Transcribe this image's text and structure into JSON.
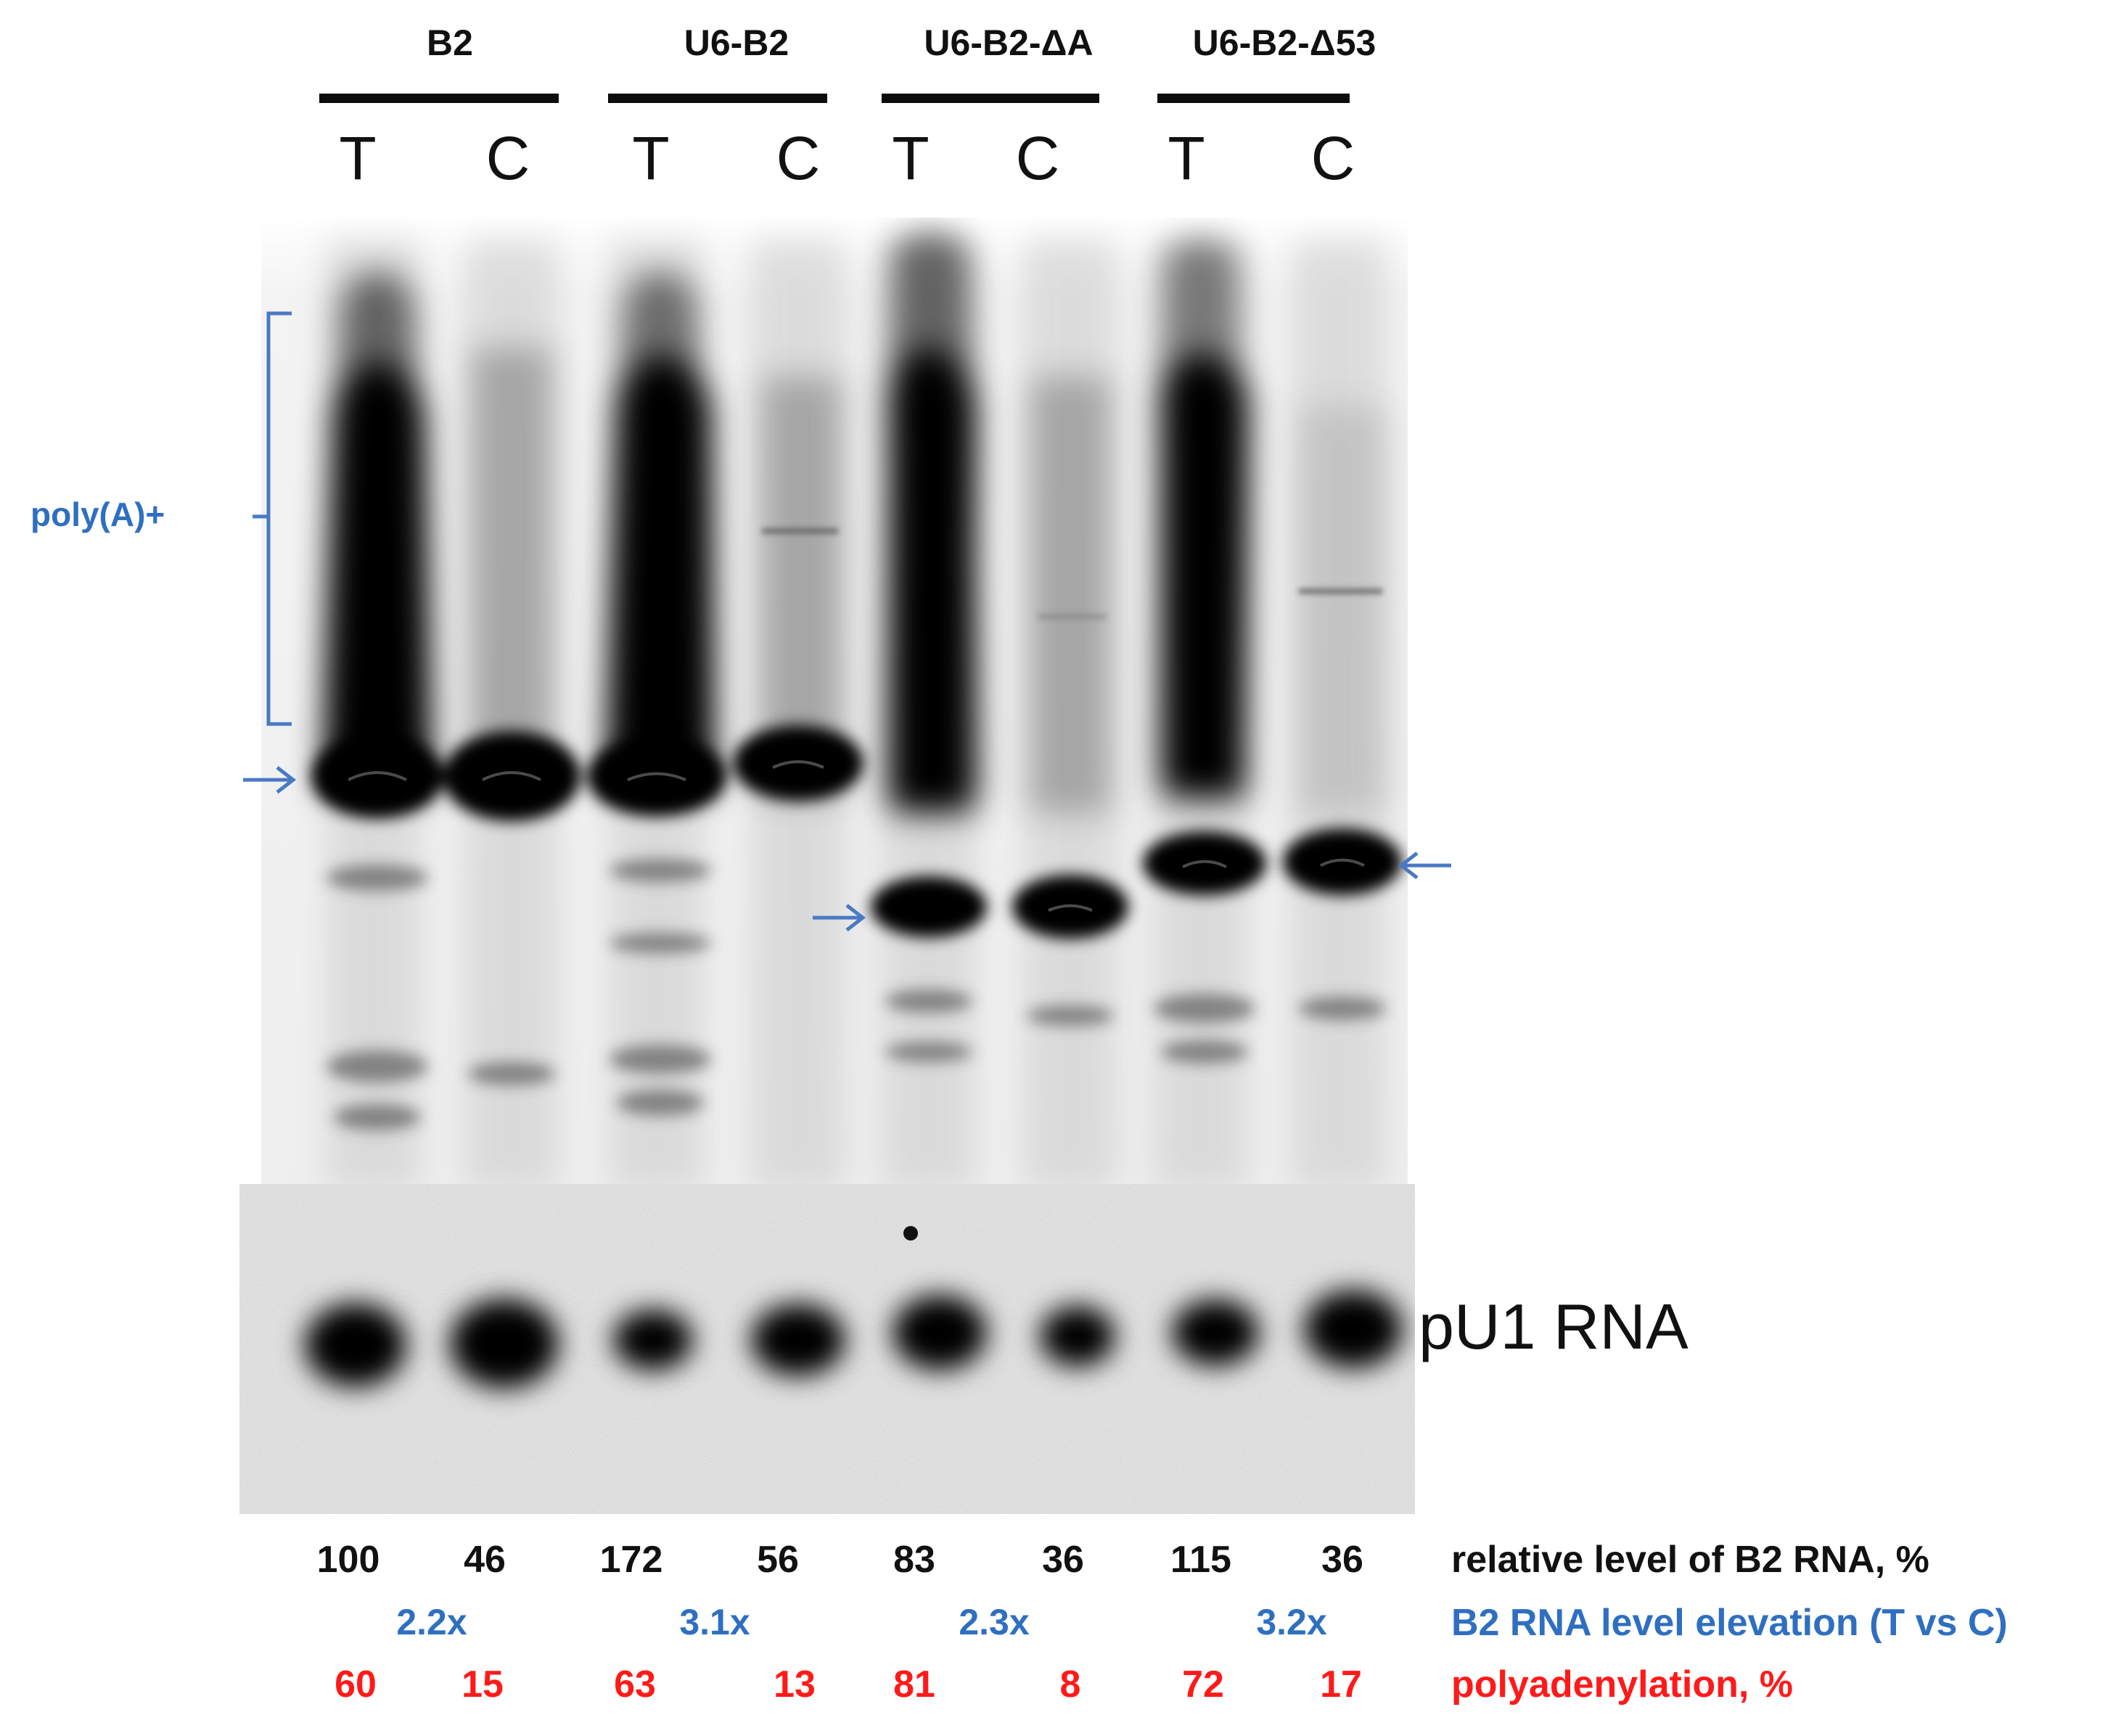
{
  "groups": [
    {
      "name": "B2"
    },
    {
      "name": "U6-B2"
    },
    {
      "name": "U6-B2-ΔA"
    },
    {
      "name": "U6-B2-Δ53"
    }
  ],
  "lanes": [
    "T",
    "C",
    "T",
    "C",
    "T",
    "C",
    "T",
    "C"
  ],
  "polyA_label": "poly(A)+",
  "loading_control_label": "pU1 RNA",
  "relative_level": {
    "label": "relative level of B2 RNA, %",
    "values": [
      "100",
      "46",
      "172",
      "56",
      "83",
      "36",
      "115",
      "36"
    ]
  },
  "elevation": {
    "label": "B2 RNA level elevation (T vs C)",
    "values": [
      "2.2x",
      "3.1x",
      "2.3x",
      "3.2x"
    ]
  },
  "polyadenylation": {
    "label": "polyadenylation, %",
    "values": [
      "60",
      "15",
      "63",
      "13",
      "81",
      "8",
      "72",
      "17"
    ]
  },
  "colors": {
    "annotation_blue": "#2f6fc1",
    "arrow_blue": "#4a79c4",
    "polyadenylation_red": "#ff1a1a",
    "text_black": "#111111"
  }
}
